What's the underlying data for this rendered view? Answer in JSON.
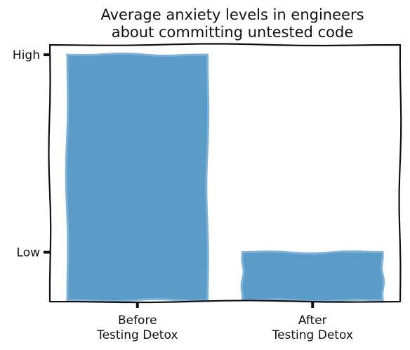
{
  "chart_data": {
    "type": "bar",
    "title_lines": [
      "Average anxiety levels in engineers",
      "about committing untested code"
    ],
    "categories": [
      {
        "lines": [
          "Before",
          "Testing Detox"
        ]
      },
      {
        "lines": [
          "After",
          "Testing Detox"
        ]
      }
    ],
    "values": [
      1.0,
      0.0
    ],
    "y_ticks": [
      {
        "value": 1.0,
        "label": "High"
      },
      {
        "value": 0.0,
        "label": "Low"
      }
    ],
    "ylim": [
      -0.25,
      1.05
    ],
    "bar_color": "#5b9bc8",
    "bar_edge_color": "#7fb1d6",
    "axis_color": "#111111",
    "grid": false,
    "legend": "none"
  }
}
